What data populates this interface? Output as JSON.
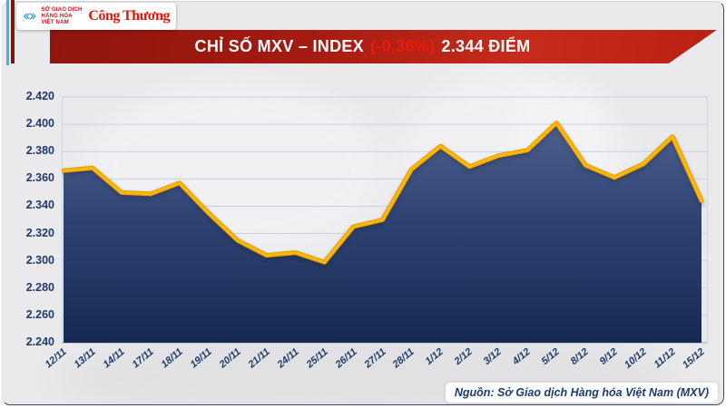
{
  "header": {
    "title_main": "CHỈ SỐ MXV – INDEX",
    "title_change": "(-0,36%)",
    "title_value": "2.344 ĐIỂM"
  },
  "logo": {
    "mxv_line1": "SỞ GIAO DỊCH",
    "mxv_line2": "HÀNG HÓA",
    "mxv_line3": "VIỆT NAM",
    "congthuong": "Công Thương"
  },
  "footer": {
    "source": "Nguồn: Sở Giao dịch Hàng hóa Việt Nam (MXV)"
  },
  "colors": {
    "banner_red_dark": "#8e150e",
    "banner_red": "#c62b1d",
    "change_red": "#ef1c0e",
    "navy_text": "#21396b",
    "line_gold": "#ffb606",
    "line_gold_dark": "#dd9a00",
    "fill_top": "#4d6090",
    "fill_mid": "#2e4272",
    "fill_bottom": "#152a52",
    "grid": "#c9d0db",
    "logo_blue": "#1f9ad6",
    "logo_red": "#cf1420",
    "page_bg": "#eaeaed"
  },
  "chart_data": {
    "type": "area",
    "title": "CHỈ SỐ MXV – INDEX (-0,36%) 2.344 ĐIỂM",
    "xlabel": "",
    "ylabel": "",
    "grid": "horizontal",
    "legend": "none",
    "x": [
      "12/11",
      "13/11",
      "14/11",
      "17/11",
      "18/11",
      "19/11",
      "20/11",
      "21/11",
      "24/11",
      "25/11",
      "26/11",
      "27/11",
      "28/11",
      "1/12",
      "2/12",
      "3/12",
      "4/12",
      "5/12",
      "8/12",
      "9/12",
      "10/12",
      "11/12",
      "15/12"
    ],
    "values": [
      2366,
      2368,
      2350,
      2349,
      2357,
      2335,
      2315,
      2304,
      2306,
      2299,
      2325,
      2330,
      2367,
      2384,
      2369,
      2377,
      2381,
      2401,
      2370,
      2361,
      2371,
      2391,
      2344
    ],
    "ylim": [
      2240,
      2420
    ],
    "ytick_step": 20,
    "ytick_labels": [
      "2.420",
      "2.400",
      "2.380",
      "2.360",
      "2.340",
      "2.320",
      "2.300",
      "2.280",
      "2.260",
      "2.240"
    ]
  }
}
